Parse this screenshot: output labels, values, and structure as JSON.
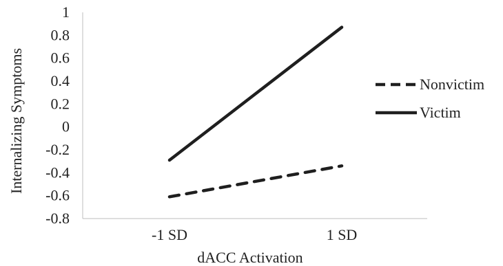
{
  "chart_data": {
    "type": "line",
    "categories": [
      "-1 SD",
      "1 SD"
    ],
    "series": [
      {
        "name": "Nonvictim",
        "values": [
          -0.61,
          -0.34
        ],
        "color": "#1f1f1f",
        "line_style": "dashed"
      },
      {
        "name": "Victim",
        "values": [
          -0.29,
          0.87
        ],
        "color": "#1f1f1f",
        "line_style": "solid"
      }
    ],
    "title": "",
    "xlabel": "dACC Activation",
    "ylabel": "Internalizing  Symptoms",
    "ylim": [
      -0.8,
      1
    ],
    "yticks": [
      "1",
      "0.8",
      "0.6",
      "0.4",
      "0.2",
      "0",
      "-0.2",
      "-0.4",
      "-0.6",
      "-0.8"
    ],
    "ytick_values": [
      1,
      0.8,
      0.6,
      0.4,
      0.2,
      0,
      -0.2,
      -0.4,
      -0.6,
      -0.8
    ],
    "grid": false,
    "legend_position": "right"
  }
}
